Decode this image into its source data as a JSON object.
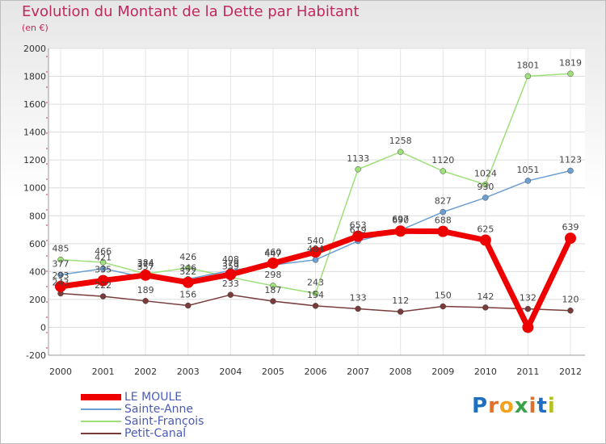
{
  "title": "Evolution du Montant de la Dette par Habitant",
  "subtitle": "(en €)",
  "logo": {
    "text": "Proxiti",
    "letter_colors": [
      "#1f6fc0",
      "#e0702a",
      "#f2a31b",
      "#3aa34a",
      "#e0702a",
      "#1f6fc0",
      "#b3c21d"
    ]
  },
  "chart_data": {
    "type": "line",
    "title": "Evolution du Montant de la Dette par Habitant",
    "subtitle": "(en €)",
    "xlabel": "",
    "ylabel": "",
    "x": [
      "2000",
      "2001",
      "2002",
      "2003",
      "2004",
      "2005",
      "2006",
      "2007",
      "2008",
      "2009",
      "2010",
      "2011",
      "2012"
    ],
    "ylim": [
      -200,
      2000
    ],
    "yticks": [
      "2000",
      "1800",
      "1600",
      "1400",
      "1200",
      "1000",
      "800",
      "600",
      "400",
      "200",
      "0",
      "-200"
    ],
    "ytick_values": [
      2000,
      1800,
      1600,
      1400,
      1200,
      1000,
      800,
      600,
      400,
      200,
      0,
      -200
    ],
    "grid": true,
    "legend_position": "bottom-left",
    "series": [
      {
        "name": "LE MOULE",
        "color": "#ee0000",
        "values": [
          293,
          335,
          374,
          322,
          379,
          460,
          540,
          653,
          690,
          688,
          625,
          0,
          639
        ],
        "labels": [
          "293",
          "335",
          "374",
          "322",
          "379",
          "460",
          "540",
          "653",
          "690",
          "688",
          "625",
          "",
          "639"
        ]
      },
      {
        "name": "Sainte-Anne",
        "color": "#6c9fd2",
        "values": [
          377,
          421,
          357,
          346,
          408,
          447,
          484,
          619,
          697,
          827,
          930,
          1051,
          1123
        ],
        "labels": [
          "377",
          "421",
          "357",
          "346",
          "408",
          "447",
          "484",
          "619",
          "697",
          "827",
          "930",
          "1051",
          "1123"
        ]
      },
      {
        "name": "Saint-François",
        "color": "#9ee07a",
        "values": [
          485,
          466,
          384,
          426,
          359,
          298,
          243,
          1133,
          1258,
          1120,
          1024,
          1801,
          1819
        ],
        "labels": [
          "485",
          "466",
          "384",
          "426",
          "359",
          "298",
          "243",
          "1133",
          "1258",
          "1120",
          "1024",
          "1801",
          "1819"
        ]
      },
      {
        "name": "Petit-Canal",
        "color": "#7a3b3b",
        "values": [
          243,
          222,
          189,
          156,
          233,
          187,
          154,
          133,
          112,
          150,
          142,
          132,
          120
        ],
        "labels": [
          "243",
          "222",
          "189",
          "156",
          "233",
          "187",
          "154",
          "133",
          "112",
          "150",
          "142",
          "132",
          "120"
        ]
      }
    ]
  }
}
